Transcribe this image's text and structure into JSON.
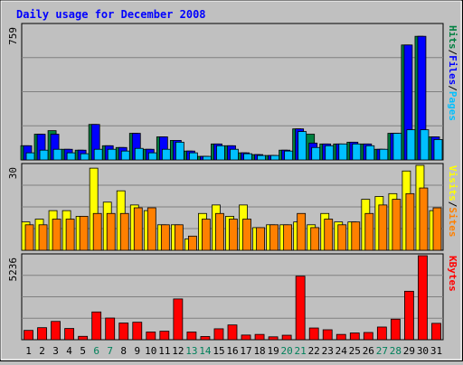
{
  "chart_data": {
    "type": "bar",
    "title": "Daily usage for December 2008",
    "categories": [
      "1",
      "2",
      "3",
      "4",
      "5",
      "6",
      "7",
      "8",
      "9",
      "10",
      "11",
      "12",
      "13",
      "14",
      "15",
      "16",
      "17",
      "18",
      "19",
      "20",
      "21",
      "22",
      "23",
      "24",
      "25",
      "26",
      "27",
      "28",
      "29",
      "30",
      "31"
    ],
    "weekend_days": [
      "6",
      "7",
      "13",
      "14",
      "20",
      "21",
      "27",
      "28"
    ],
    "panels": [
      {
        "id": "hits-panel",
        "ymax_label": "759",
        "ylim": [
          0,
          759
        ],
        "legend": [
          {
            "text": "Pages",
            "color": "#00c0ff"
          },
          {
            "text": "Files",
            "color": "#0000ff"
          },
          {
            "text": "Hits",
            "color": "#008040"
          }
        ],
        "series": [
          {
            "name": "Hits",
            "color": "#008040",
            "values": [
              80,
              145,
              165,
              60,
              55,
              200,
              80,
              70,
              150,
              60,
              130,
              110,
              50,
              20,
              90,
              80,
              40,
              30,
              25,
              55,
              175,
              145,
              90,
              90,
              100,
              90,
              60,
              150,
              648,
              697,
              130
            ]
          },
          {
            "name": "Files",
            "color": "#0000ff",
            "values": [
              80,
              145,
              145,
              60,
              55,
              200,
              80,
              70,
              150,
              60,
              130,
              110,
              50,
              20,
              90,
              80,
              40,
              30,
              25,
              55,
              175,
              95,
              90,
              90,
              100,
              90,
              60,
              150,
              648,
              697,
              130
            ]
          },
          {
            "name": "Pages",
            "color": "#00c0ff",
            "values": [
              40,
              55,
              60,
              40,
              35,
              60,
              60,
              50,
              65,
              40,
              60,
              100,
              40,
              20,
              80,
              60,
              35,
              25,
              25,
              50,
              160,
              70,
              80,
              90,
              90,
              80,
              60,
              150,
              170,
              170,
              115
            ]
          }
        ]
      },
      {
        "id": "visits-panel",
        "ymax_label": "30",
        "ylim": [
          0,
          30
        ],
        "legend": [
          {
            "text": "Sites",
            "color": "#ff8000"
          },
          {
            "text": "Visits",
            "color": "#ffff00"
          }
        ],
        "series": [
          {
            "name": "Visits",
            "color": "#ffff00",
            "values": [
              10,
              11,
              14,
              14,
              12,
              29,
              17,
              21,
              16,
              14,
              9,
              9,
              4,
              13,
              16,
              12,
              16,
              8,
              9,
              9,
              10,
              9,
              13,
              10,
              10,
              18,
              19,
              20,
              28,
              30,
              14
            ]
          },
          {
            "name": "Sites",
            "color": "#ff8000",
            "values": [
              9,
              9,
              11,
              11,
              12,
              13,
              13,
              13,
              15,
              15,
              9,
              9,
              5,
              11,
              13,
              11,
              11,
              8,
              9,
              9,
              13,
              8,
              11,
              9,
              10,
              13,
              16,
              18,
              20,
              22,
              15
            ]
          }
        ]
      },
      {
        "id": "kbytes-panel",
        "ymax_label": "5236",
        "ylim": [
          0,
          5236
        ],
        "legend": [
          {
            "text": "KBytes",
            "color": "#ff0000"
          }
        ],
        "series": [
          {
            "name": "KBytes",
            "color": "#ff0000",
            "values": [
              580,
              750,
              1140,
              700,
              210,
              1730,
              1350,
              1040,
              1090,
              480,
              530,
              2540,
              480,
              200,
              680,
              920,
              290,
              330,
              180,
              280,
              3960,
              730,
              620,
              330,
              420,
              450,
              790,
              1280,
              3020,
              5236,
              1020
            ]
          }
        ]
      }
    ]
  }
}
